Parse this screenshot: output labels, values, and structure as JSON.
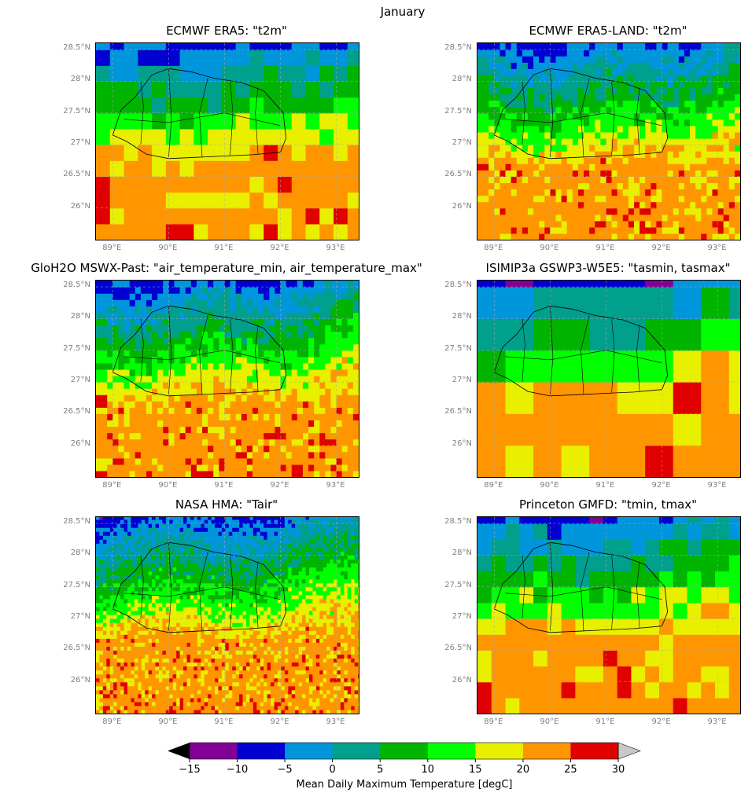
{
  "figure": {
    "suptitle": "January"
  },
  "chart_data": [
    {
      "type": "heatmap",
      "title": "ECMWF ERA5: \"t2m\"",
      "extent": {
        "lon": [
          88.7,
          93.4
        ],
        "lat": [
          25.5,
          28.6
        ]
      },
      "resolution_deg": 0.25
    },
    {
      "type": "heatmap",
      "title": "ECMWF ERA5-LAND: \"t2m\"",
      "extent": {
        "lon": [
          88.7,
          93.4
        ],
        "lat": [
          25.5,
          28.6
        ]
      },
      "resolution_deg": 0.1
    },
    {
      "type": "heatmap",
      "title": "GloH2O MSWX-Past: \"air_temperature_min, air_temperature_max\"",
      "extent": {
        "lon": [
          88.7,
          93.4
        ],
        "lat": [
          25.5,
          28.6
        ]
      },
      "resolution_deg": 0.1
    },
    {
      "type": "heatmap",
      "title": "ISIMIP3a GSWP3-W5E5: \"tasmin, tasmax\"",
      "extent": {
        "lon": [
          88.7,
          93.4
        ],
        "lat": [
          25.5,
          28.6
        ]
      },
      "resolution_deg": 0.5
    },
    {
      "type": "heatmap",
      "title": "NASA HMA: \"Tair\"",
      "extent": {
        "lon": [
          88.7,
          93.4
        ],
        "lat": [
          25.5,
          28.6
        ]
      },
      "resolution_deg": 0.0625
    },
    {
      "type": "heatmap",
      "title": "Princeton GMFD: \"tmin, tmax\"",
      "extent": {
        "lon": [
          88.7,
          93.4
        ],
        "lat": [
          25.5,
          28.6
        ]
      },
      "resolution_deg": 0.25
    }
  ],
  "axes": {
    "lat_ticks": [
      "28.5°N",
      "28°N",
      "27.5°N",
      "27°N",
      "26.5°N",
      "26°N"
    ],
    "lat_values": [
      28.5,
      28,
      27.5,
      27,
      26.5,
      26
    ],
    "lon_ticks": [
      "89°E",
      "90°E",
      "91°E",
      "92°E",
      "93°E"
    ],
    "lon_values": [
      89,
      90,
      91,
      92,
      93
    ],
    "grid": true
  },
  "colorbar": {
    "label": "Mean Daily Maximum Temperature [degC]",
    "ticks": [
      "−15",
      "−10",
      "−5",
      "0",
      "5",
      "10",
      "15",
      "20",
      "25",
      "30"
    ],
    "tick_values": [
      -15,
      -10,
      -5,
      0,
      5,
      10,
      15,
      20,
      25,
      30
    ],
    "bin_colors": [
      "#820096",
      "#0000d2",
      "#0096dc",
      "#00a08c",
      "#00b400",
      "#00ff00",
      "#e8f000",
      "#ff9600",
      "#e10000"
    ],
    "under_color": "#000000",
    "over_color": "#c8c8c8",
    "extend": "both"
  }
}
